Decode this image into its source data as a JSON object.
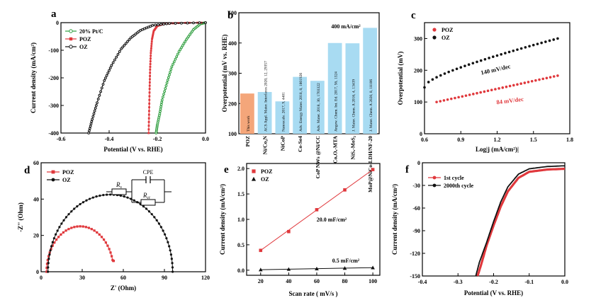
{
  "chart_data": [
    {
      "panel": "a",
      "type": "line",
      "xlabel": "Potential (V vs. RHE)",
      "ylabel": "Current density (mA/cm²)",
      "xlim": [
        -0.6,
        0.0
      ],
      "ylim": [
        -400,
        0
      ],
      "xticks": [
        "-0.6",
        "-0.4",
        "-0.2",
        "0.0"
      ],
      "yticks": [
        "0",
        "-100",
        "-200",
        "-300",
        "-400"
      ],
      "legend_position": "top-left",
      "series": [
        {
          "name": "20% Pt/C",
          "color": "#2e9e3e",
          "marker": "circle",
          "points": [
            [
              0,
              0
            ],
            [
              -0.02,
              -4
            ],
            [
              -0.05,
              -25
            ],
            [
              -0.08,
              -62
            ],
            [
              -0.11,
              -105
            ],
            [
              -0.14,
              -160
            ],
            [
              -0.16,
              -218
            ],
            [
              -0.18,
              -280
            ],
            [
              -0.19,
              -330
            ],
            [
              -0.2,
              -370
            ],
            [
              -0.205,
              -400
            ]
          ]
        },
        {
          "name": "POZ",
          "color": "#e0383c",
          "marker": "square",
          "points": [
            [
              0,
              0
            ],
            [
              -0.1,
              -1
            ],
            [
              -0.17,
              -4
            ],
            [
              -0.2,
              -12
            ],
            [
              -0.215,
              -30
            ],
            [
              -0.222,
              -60
            ],
            [
              -0.227,
              -110
            ],
            [
              -0.23,
              -170
            ],
            [
              -0.232,
              -240
            ],
            [
              -0.234,
              -320
            ],
            [
              -0.236,
              -400
            ]
          ]
        },
        {
          "name": "OZ",
          "color": "#111111",
          "marker": "circle",
          "points": [
            [
              0,
              0
            ],
            [
              -0.15,
              -3
            ],
            [
              -0.22,
              -10
            ],
            [
              -0.27,
              -28
            ],
            [
              -0.31,
              -55
            ],
            [
              -0.35,
              -95
            ],
            [
              -0.39,
              -155
            ],
            [
              -0.42,
              -210
            ],
            [
              -0.45,
              -290
            ],
            [
              -0.47,
              -350
            ],
            [
              -0.485,
              -400
            ]
          ]
        }
      ]
    },
    {
      "panel": "b",
      "type": "bar",
      "ylabel": "Overpotential (mV vs. RHE)",
      "ylim": [
        100,
        500
      ],
      "yticks": [
        "100",
        "200",
        "300",
        "400",
        "500"
      ],
      "annotation": "400 mA/cm²",
      "categories": [
        "POZ",
        "Ni/Co₃N",
        "NiCoP",
        "Co-Se4",
        "CoP NWs @Ni/CC",
        "CoₓOₓ-MTA",
        "NiSₓ-MoS₂",
        "MoP@NiCo-LDH/NF-20"
      ],
      "values": [
        233,
        238,
        207,
        288,
        275,
        400,
        399,
        450
      ],
      "colors": [
        "#f4a67a",
        "#a8dbf2",
        "#a8dbf2",
        "#a8dbf2",
        "#a8dbf2",
        "#a8dbf2",
        "#a8dbf2",
        "#a8dbf2"
      ],
      "bar_labels": [
        "This work",
        "ACS Appl. Mater. Interfaces 2020, 12, 29357",
        "Nanoscale. 2017, 9, 4401",
        "Adv. Energy Mater. 2018, 8, 1801926",
        "Adv. Mater. 2018, 30, 1703322",
        "Angew. Chem. Int. Ed. 2017, 56, 1324",
        "J. Mater. Chem. A 2016, 4, 13439",
        "J. Mater. Chem. A 2020, 8, 18106"
      ]
    },
    {
      "panel": "c",
      "type": "scatter",
      "xlabel": "Log|j (mA/cm²)|",
      "ylabel": "Overpotential (mV)",
      "xlim": [
        0.6,
        1.8
      ],
      "ylim": [
        0,
        350
      ],
      "xticks": [
        "0.6",
        "0.9",
        "1.2",
        "1.5",
        "1.8"
      ],
      "yticks": [
        "0",
        "100",
        "200",
        "300"
      ],
      "legend_position": "top-left",
      "series": [
        {
          "name": "POZ",
          "color": "#e0383c",
          "x_range": [
            0.7,
            1.7
          ],
          "y_range": [
            100,
            183
          ],
          "label": "84 mV/dec"
        },
        {
          "name": "OZ",
          "color": "#111111",
          "x_range": [
            0.6,
            1.7
          ],
          "y_range": [
            146,
            300
          ],
          "label": "140 mV/dec"
        }
      ]
    },
    {
      "panel": "d",
      "type": "scatter",
      "xlabel": "Z' (Ohm)",
      "ylabel": "-Z'' (Ohm)",
      "xlim": [
        0,
        120
      ],
      "ylim": [
        0,
        60
      ],
      "xticks": [
        "0",
        "30",
        "60",
        "90",
        "120"
      ],
      "yticks": [
        "0",
        "20",
        "40",
        "60"
      ],
      "legend_position": "top-left",
      "series": [
        {
          "name": "POZ",
          "color": "#e0383c",
          "marker": "square",
          "z_start": 4,
          "z_end": 53,
          "peak": 25
        },
        {
          "name": "OZ",
          "color": "#111111",
          "marker": "circle",
          "z_start": 5,
          "z_end": 96,
          "peak": 42.5
        }
      ],
      "circuit": {
        "cpe_label": "CPE",
        "rs_label": "R",
        "rs_sub": "s",
        "rct_label": "R",
        "rct_sub": "ct"
      }
    },
    {
      "panel": "e",
      "type": "line",
      "xlabel": "Scan rate ( mV/s )",
      "ylabel": "Current density (mA/cm²)",
      "xlim": [
        10,
        105
      ],
      "ylim": [
        -0.1,
        2.1
      ],
      "xticks": [
        "20",
        "40",
        "60",
        "80",
        "100"
      ],
      "yticks": [
        "0.0",
        "0.5",
        "1.0",
        "1.5",
        "2.0"
      ],
      "legend_position": "top-left",
      "series": [
        {
          "name": "POZ",
          "color": "#e0383c",
          "marker": "square",
          "x": [
            20,
            40,
            60,
            80,
            100
          ],
          "y": [
            0.39,
            0.76,
            1.19,
            1.58,
            1.98
          ],
          "label": "20.0 mF/cm²"
        },
        {
          "name": "OZ",
          "color": "#111111",
          "marker": "triangle",
          "x": [
            20,
            40,
            60,
            80,
            100
          ],
          "y": [
            0.01,
            0.02,
            0.03,
            0.04,
            0.05
          ],
          "label": "0.5 mF/cm²"
        }
      ]
    },
    {
      "panel": "f",
      "type": "line",
      "xlabel": "Potential (V vs. RHE)",
      "ylabel": "Current density (mA/cm²)",
      "xlim": [
        -0.4,
        0.0
      ],
      "ylim": [
        -150,
        0
      ],
      "xticks": [
        "-0.4",
        "-0.3",
        "-0.2",
        "-0.1",
        "0.0"
      ],
      "yticks": [
        "0",
        "-30",
        "-60",
        "-90",
        "-120",
        "-150"
      ],
      "legend_position": "top-left",
      "series": [
        {
          "name": "1st cycle",
          "color": "#e0383c",
          "points": [
            [
              0,
              -8
            ],
            [
              -0.05,
              -9
            ],
            [
              -0.1,
              -12
            ],
            [
              -0.13,
              -20
            ],
            [
              -0.16,
              -38
            ],
            [
              -0.18,
              -58
            ],
            [
              -0.2,
              -83
            ],
            [
              -0.22,
              -110
            ],
            [
              -0.235,
              -135
            ],
            [
              -0.245,
              -150
            ]
          ]
        },
        {
          "name": "2000th cycle",
          "color": "#111111",
          "points": [
            [
              0,
              -4
            ],
            [
              -0.05,
              -5
            ],
            [
              -0.1,
              -8
            ],
            [
              -0.13,
              -15
            ],
            [
              -0.16,
              -32
            ],
            [
              -0.18,
              -52
            ],
            [
              -0.2,
              -78
            ],
            [
              -0.22,
              -106
            ],
            [
              -0.24,
              -132
            ],
            [
              -0.25,
              -150
            ]
          ]
        }
      ]
    }
  ]
}
